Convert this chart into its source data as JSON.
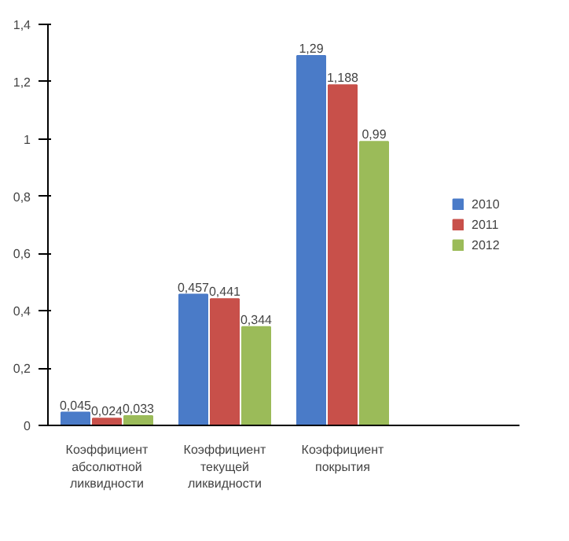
{
  "chart_data": {
    "type": "bar",
    "categories": [
      "Коэффициент абсолютной ликвидности",
      "Коэффициент текущей ликвидности",
      "Коэффициент покрытия",
      null
    ],
    "series": [
      {
        "name": "2010",
        "color": "#4a7bc8",
        "values": [
          0.045,
          0.457,
          1.29,
          null
        ],
        "value_labels": [
          "0,045",
          "0,457",
          "1,29",
          null
        ]
      },
      {
        "name": "2011",
        "color": "#c8504a",
        "values": [
          0.024,
          0.441,
          1.188,
          null
        ],
        "value_labels": [
          "0,024",
          "0,441",
          "1,188",
          null
        ]
      },
      {
        "name": "2012",
        "color": "#9bbb59",
        "values": [
          0.033,
          0.344,
          0.99,
          null
        ],
        "value_labels": [
          "0,033",
          "0,344",
          "0,99",
          null
        ]
      }
    ],
    "ylim": [
      0,
      1.4
    ],
    "yticks": [
      {
        "value": 0,
        "label": "0"
      },
      {
        "value": 0.2,
        "label": "0,2"
      },
      {
        "value": 0.4,
        "label": "0,4"
      },
      {
        "value": 0.6,
        "label": "0,6"
      },
      {
        "value": 0.8,
        "label": "0,8"
      },
      {
        "value": 1,
        "label": "1"
      },
      {
        "value": 1.2,
        "label": "1,2"
      },
      {
        "value": 1.4,
        "label": "1,4"
      }
    ],
    "legend": "right"
  }
}
